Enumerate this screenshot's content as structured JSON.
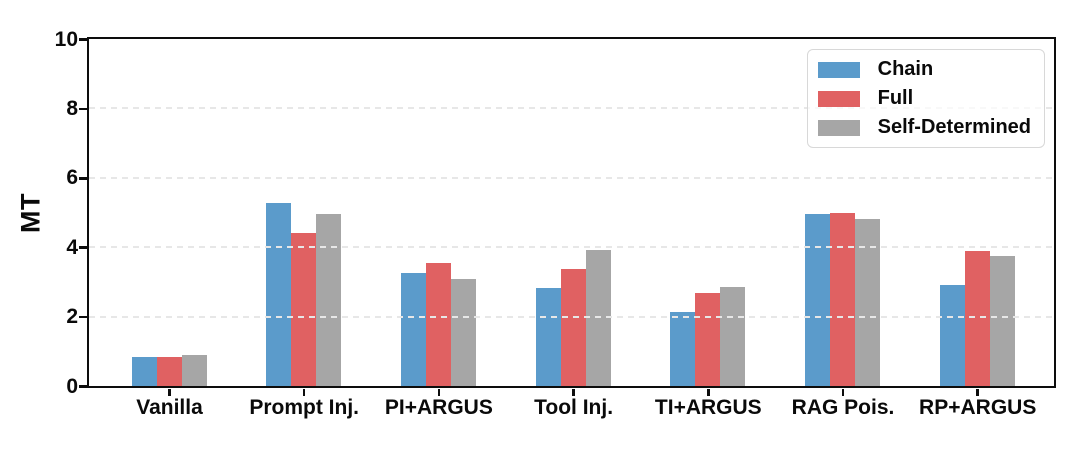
{
  "figure_title": "",
  "chart_data": {
    "type": "bar",
    "title": "",
    "xlabel": "",
    "ylabel": "MT",
    "ylim": [
      0,
      10
    ],
    "yticks": [
      0,
      2,
      4,
      6,
      8,
      10
    ],
    "grid": "horizontal dashed gridlines at 2, 4, 6, 8, drawn over bars",
    "legend_position": "upper-right",
    "axis_color": "#0d0d0d",
    "grid_color": "#e7e7e7",
    "background_color": "#ffffff",
    "categories": [
      "Vanilla",
      "Prompt Inj.",
      "PI+ARGUS",
      "Tool Inj.",
      "TI+ARGUS",
      "RAG Pois.",
      "RP+ARGUS"
    ],
    "series": [
      {
        "name": "Chain",
        "color": "#5B9BCB",
        "values": [
          0.85,
          5.28,
          3.25,
          2.82,
          2.13,
          4.95,
          2.9
        ]
      },
      {
        "name": "Full",
        "color": "#E06162",
        "values": [
          0.85,
          4.42,
          3.55,
          3.36,
          2.67,
          5.0,
          3.9
        ]
      },
      {
        "name": "Self-Determined",
        "color": "#A6A6A6",
        "values": [
          0.88,
          4.95,
          3.08,
          3.93,
          2.84,
          4.82,
          3.75
        ]
      }
    ]
  }
}
